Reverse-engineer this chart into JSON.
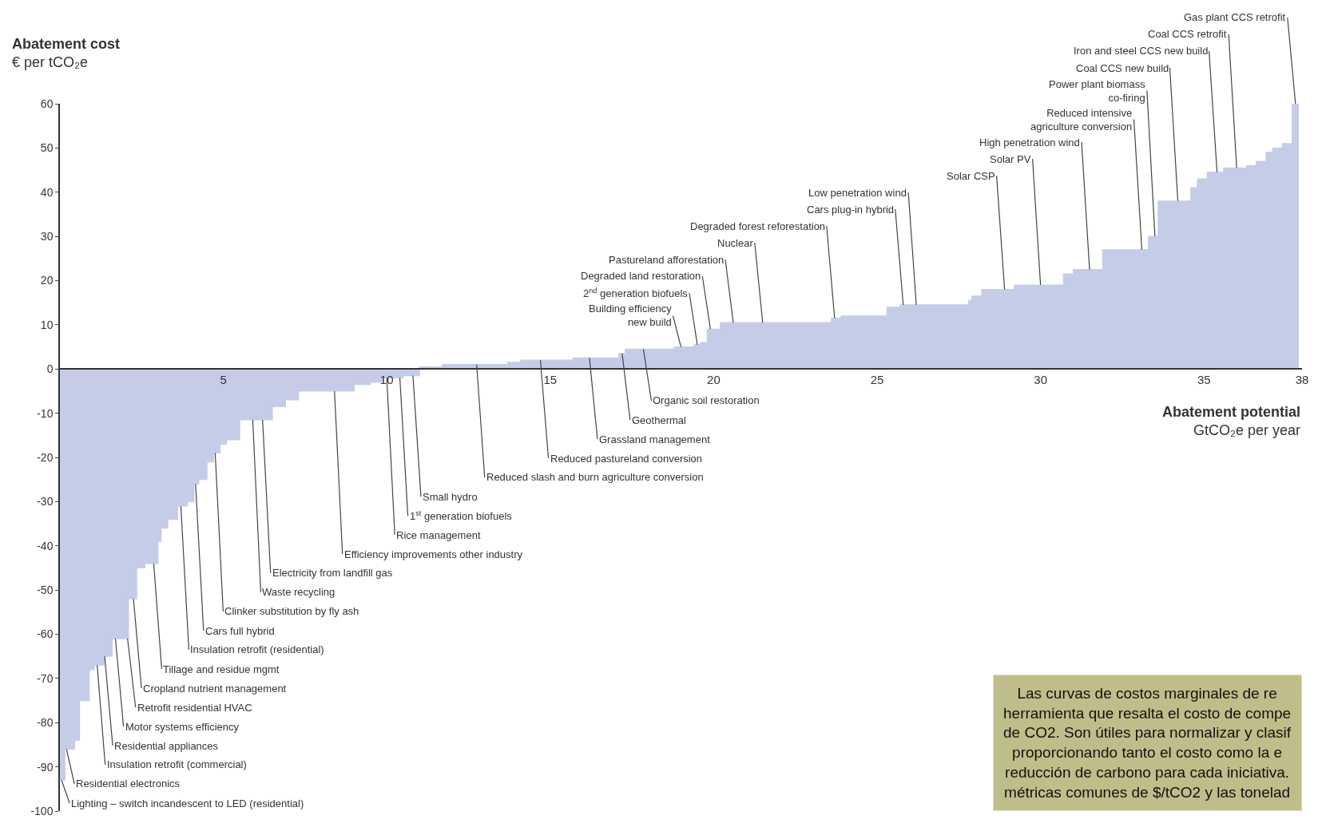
{
  "chart_data": {
    "type": "area",
    "ylabel": "Abatement cost\n€ per tCO₂e",
    "xlabel": "Abatement potential\nGtCO₂e per year",
    "color": "#c4cce8",
    "x": [
      0,
      0.15,
      0.45,
      0.6,
      0.9,
      1.05,
      1.35,
      1.6,
      2.1,
      2.35,
      2.6,
      3.0,
      3.1,
      3.3,
      3.6,
      3.9,
      4.1,
      4.25,
      4.5,
      4.7,
      4.9,
      5.1,
      5.5,
      6.5,
      6.9,
      7.3,
      9.0,
      9.5,
      9.9,
      10.5,
      11.0,
      11.7,
      13.7,
      14.1,
      15.7,
      17.1,
      17.3,
      18.8,
      19.4,
      19.6,
      19.8,
      20.2,
      23.6,
      23.9,
      25.3,
      25.7,
      27.8,
      27.9,
      28.2,
      29.2,
      30.7,
      31.0,
      31.9,
      33.3,
      33.6,
      34.6,
      34.8,
      35.1,
      35.6,
      36.3,
      36.6,
      36.9,
      37.1,
      37.4,
      37.7,
      37.9
    ],
    "values": [
      -93,
      -86,
      -84,
      -75,
      -68,
      -67,
      -65,
      -61,
      -52,
      -45,
      -44,
      -39,
      -36,
      -34,
      -31,
      -30,
      -26,
      -25,
      -21,
      -19,
      -17,
      -16,
      -11.5,
      -8.5,
      -7,
      -5,
      -3.5,
      -3,
      -2,
      -1.5,
      0.5,
      1,
      1.5,
      2,
      2.5,
      3.5,
      4.5,
      5,
      5.5,
      6,
      9,
      10.5,
      11.5,
      12,
      14,
      14.5,
      15.5,
      16.5,
      18,
      19,
      21.5,
      22.5,
      27,
      30,
      38,
      41,
      43,
      44.5,
      45.5,
      46,
      47,
      49,
      50,
      51,
      60,
      60
    ],
    "xlim": [
      0,
      38
    ],
    "xticks": [
      5,
      10,
      15,
      20,
      25,
      30,
      35,
      38
    ],
    "ylim": [
      -100,
      60
    ],
    "yticks": [
      -100,
      -90,
      -80,
      -70,
      -60,
      -50,
      -40,
      -30,
      -20,
      -10,
      0,
      10,
      20,
      30,
      40,
      50,
      60
    ],
    "annotations": [
      {
        "text": "Residential electronics",
        "x": 0.2,
        "y": -86
      },
      {
        "text": "Residential appliances",
        "x": 1.37,
        "y": -65
      },
      {
        "text": "Retrofit residential HVAC",
        "x": 2.07,
        "y": -61
      },
      {
        "text": "Tillage and residue mgmt",
        "x": 2.87,
        "y": -44
      },
      {
        "text": "Insulation retrofit (residential)",
        "x": 3.7,
        "y": -31
      },
      {
        "text": "Cars full hybrid",
        "x": 4.15,
        "y": -26
      },
      {
        "text": "Waste recycling",
        "x": 5.9,
        "y": -11.5
      },
      {
        "text": "Lighting – switch incandescent to LED (residential)",
        "x": 0.05,
        "y": -93
      },
      {
        "text": "Insulation retrofit (commercial)",
        "x": 1.14,
        "y": -67
      },
      {
        "text": "Motor systems efficiency",
        "x": 1.7,
        "y": -61
      },
      {
        "text": "Cropland nutrient management",
        "x": 2.25,
        "y": -52
      },
      {
        "text": "Clinker substitution by fly ash",
        "x": 4.75,
        "y": -19
      },
      {
        "text": "Electricity from landfill gas",
        "x": 6.2,
        "y": -11.5
      },
      {
        "text": "Efficiency improvements other industry",
        "x": 8.4,
        "y": -5
      },
      {
        "text": "Rice management",
        "x": 10.0,
        "y": -2
      },
      {
        "text": "1$^{st}$ generation biofuels",
        "x": 10.4,
        "y": -2
      },
      {
        "text": "Small hydro",
        "x": 10.8,
        "y": -1.5
      },
      {
        "text": "Reduced slash and burn agriculture conversion",
        "x": 12.75,
        "y": 1
      },
      {
        "text": "Reduced pastureland conversion",
        "x": 14.7,
        "y": 2
      },
      {
        "text": "Grassland management",
        "x": 16.2,
        "y": 2.5
      },
      {
        "text": "Geothermal",
        "x": 17.2,
        "y": 3.5
      },
      {
        "text": "Organic soil restoration",
        "x": 17.85,
        "y": 4.5
      },
      {
        "text": "Building efficiency\nnew build",
        "x": 19.0,
        "y": 5
      },
      {
        "text": "2$^{nd}$ generation biofuels",
        "x": 19.5,
        "y": 5.5
      },
      {
        "text": "Degraded land restoration",
        "x": 19.9,
        "y": 9
      },
      {
        "text": "Pastureland afforestation",
        "x": 20.6,
        "y": 10.5
      },
      {
        "text": "Nuclear",
        "x": 21.5,
        "y": 10.5
      },
      {
        "text": "Degraded forest reforestation",
        "x": 23.7,
        "y": 11.5
      },
      {
        "text": "Cars plug-in hybrid",
        "x": 25.8,
        "y": 14.5
      },
      {
        "text": "Low penetration wind",
        "x": 26.2,
        "y": 14.5
      },
      {
        "text": "Solar CSP",
        "x": 28.9,
        "y": 18
      },
      {
        "text": "Solar PV",
        "x": 30.0,
        "y": 19
      },
      {
        "text": "High penetration wind",
        "x": 31.5,
        "y": 22.5
      },
      {
        "text": "Reduced intensive\nagriculture conversion",
        "x": 33.1,
        "y": 27
      },
      {
        "text": "Power plant biomass\nco-firing",
        "x": 33.5,
        "y": 30
      },
      {
        "text": "Coal CCS new build",
        "x": 34.2,
        "y": 38
      },
      {
        "text": "Iron and steel CCS new build",
        "x": 35.4,
        "y": 44.5
      },
      {
        "text": "Coal CCS retrofit",
        "x": 36.0,
        "y": 45.5
      },
      {
        "text": "Gas plant CCS retrofit",
        "x": 37.8,
        "y": 60
      },
      "Las curvas de costos marginales de re\nherramienta que resalta el costo de compe\nde CO2. Son útiles para normalizar y clasif\nproporcionando tanto el costo como la e\nreducción de carbono para cada iniciativa.\nmétricas comunes de $/tCO2 y las tonelad"
    ]
  }
}
